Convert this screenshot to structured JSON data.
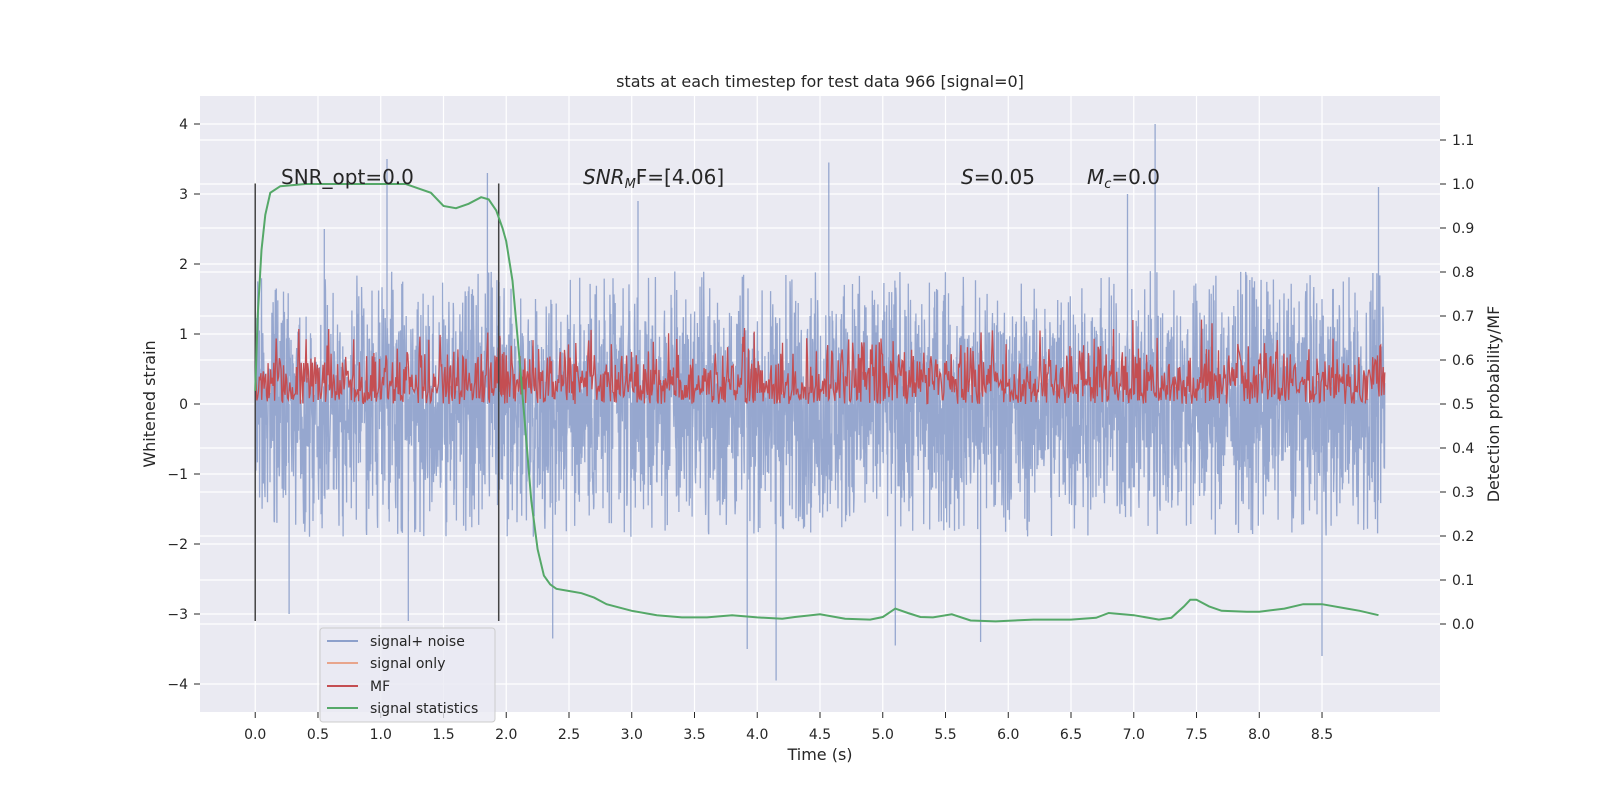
{
  "chart_data": {
    "type": "line",
    "title": "stats at each timestep for test data 966 [signal=0]",
    "xlabel": "Time (s)",
    "ylabel": "Whitened strain",
    "ylabel_right": "Detection probability/MF",
    "xlim": [
      -0.44,
      9.44
    ],
    "ylim": [
      -4.4,
      4.4
    ],
    "ylim_right": [
      -0.2,
      1.2
    ],
    "grid": true,
    "x_ticks": [
      "0.0",
      "0.5",
      "1.0",
      "1.5",
      "2.0",
      "2.5",
      "3.0",
      "3.5",
      "4.0",
      "4.5",
      "5.0",
      "5.5",
      "6.0",
      "6.5",
      "7.0",
      "7.5",
      "8.0",
      "8.5"
    ],
    "y_ticks": [
      "4",
      "3",
      "2",
      "1",
      "0",
      "−1",
      "−2",
      "−3",
      "−4"
    ],
    "y_right_ticks": [
      "1.1",
      "1.0",
      "0.9",
      "0.8",
      "0.7",
      "0.6",
      "0.5",
      "0.4",
      "0.3",
      "0.2",
      "0.1",
      "0.0"
    ],
    "annotations": {
      "snr_opt": "SNR_opt=0.0",
      "snr_mf_base": "SNR",
      "snr_mf_sub": "M",
      "snr_mf_rest": "F=[4.06]",
      "s_stat_var": "S",
      "s_stat_rest": "=0.05",
      "mc_var": "M",
      "mc_sub": "c",
      "mc_rest": "=0.0"
    },
    "vertical_markers": [
      0.0,
      1.94
    ],
    "series": [
      {
        "name": "signal+ noise",
        "color": "#8da0cb",
        "axis": "left",
        "x_range": [
          0.0,
          9.0
        ],
        "typical_range": [
          -1.9,
          1.9
        ],
        "extreme_peaks": [
          {
            "x": 0.27,
            "y": -3.0
          },
          {
            "x": 0.55,
            "y": 2.5
          },
          {
            "x": 1.05,
            "y": 3.5
          },
          {
            "x": 1.22,
            "y": -3.1
          },
          {
            "x": 1.85,
            "y": 3.3
          },
          {
            "x": 2.37,
            "y": -3.35
          },
          {
            "x": 3.05,
            "y": 2.9
          },
          {
            "x": 3.92,
            "y": -3.5
          },
          {
            "x": 4.15,
            "y": -3.95
          },
          {
            "x": 4.57,
            "y": 3.45
          },
          {
            "x": 5.1,
            "y": -3.45
          },
          {
            "x": 5.78,
            "y": -3.4
          },
          {
            "x": 6.95,
            "y": 3.0
          },
          {
            "x": 7.17,
            "y": 4.0
          },
          {
            "x": 8.5,
            "y": -3.6
          },
          {
            "x": 8.95,
            "y": 3.1
          }
        ]
      },
      {
        "name": "signal only",
        "color": "#e8a58c",
        "axis": "left",
        "values": []
      },
      {
        "name": "MF",
        "color": "#c44e52",
        "axis": "right",
        "x_range": [
          0.0,
          9.0
        ],
        "baseline": 0.5,
        "typical_peak": 0.61,
        "max": 0.71
      },
      {
        "name": "signal statistics",
        "color": "#55a868",
        "axis": "right",
        "x": [
          0.0,
          0.02,
          0.05,
          0.08,
          0.12,
          0.2,
          0.4,
          0.8,
          1.0,
          1.2,
          1.3,
          1.4,
          1.5,
          1.6,
          1.7,
          1.8,
          1.86,
          1.92,
          1.97,
          2.0,
          2.05,
          2.1,
          2.15,
          2.2,
          2.25,
          2.3,
          2.35,
          2.4,
          2.5,
          2.6,
          2.7,
          2.8,
          3.0,
          3.2,
          3.4,
          3.6,
          3.8,
          4.0,
          4.2,
          4.3,
          4.5,
          4.7,
          4.9,
          5.0,
          5.1,
          5.2,
          5.3,
          5.4,
          5.55,
          5.7,
          5.9,
          6.2,
          6.5,
          6.7,
          6.8,
          7.0,
          7.2,
          7.3,
          7.4,
          7.45,
          7.5,
          7.6,
          7.7,
          7.9,
          8.0,
          8.2,
          8.35,
          8.5,
          8.7,
          8.8,
          8.95
        ],
        "y": [
          0.53,
          0.7,
          0.85,
          0.93,
          0.98,
          0.995,
          1.0,
          1.0,
          1.0,
          1.0,
          0.99,
          0.98,
          0.95,
          0.945,
          0.955,
          0.97,
          0.965,
          0.94,
          0.9,
          0.87,
          0.78,
          0.62,
          0.45,
          0.28,
          0.17,
          0.11,
          0.09,
          0.08,
          0.075,
          0.07,
          0.06,
          0.045,
          0.03,
          0.02,
          0.015,
          0.015,
          0.02,
          0.015,
          0.012,
          0.016,
          0.022,
          0.012,
          0.01,
          0.016,
          0.035,
          0.025,
          0.016,
          0.015,
          0.022,
          0.008,
          0.006,
          0.01,
          0.01,
          0.014,
          0.025,
          0.02,
          0.01,
          0.014,
          0.04,
          0.055,
          0.055,
          0.04,
          0.03,
          0.028,
          0.028,
          0.035,
          0.045,
          0.045,
          0.035,
          0.03,
          0.02
        ]
      }
    ],
    "legend": {
      "position": "lower-left",
      "entries": [
        "signal+ noise",
        "signal only",
        "MF",
        "signal statistics"
      ]
    }
  }
}
